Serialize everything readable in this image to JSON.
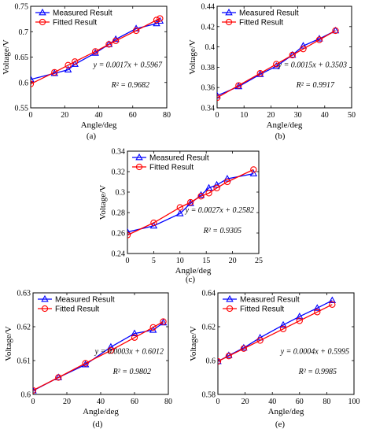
{
  "chart_data": [
    {
      "type": "line",
      "panel_label": "(a)",
      "xlabel": "Angle/deg",
      "ylabel": "Voltage/V",
      "xlim": [
        0,
        80
      ],
      "ylim": [
        0.55,
        0.75
      ],
      "xticks": [
        "0",
        "20",
        "40",
        "60",
        "80"
      ],
      "yticks": [
        "0.55",
        "0.6",
        "0.65",
        "0.7",
        "0.75"
      ],
      "legend": [
        "Measured Result",
        "Fitted Result"
      ],
      "equation": "y = 0.0017x + 0.5967",
      "r2": "R² = 0.9682",
      "series": [
        {
          "name": "Measured Result",
          "color": "#0000ff",
          "marker": "triangle",
          "x": [
            0,
            14,
            22,
            26,
            38,
            46,
            50,
            62,
            74,
            76
          ],
          "y": [
            0.606,
            0.618,
            0.625,
            0.636,
            0.658,
            0.675,
            0.685,
            0.706,
            0.716,
            0.721
          ]
        },
        {
          "name": "Fitted Result",
          "color": "#ff0000",
          "marker": "circle",
          "x": [
            0,
            14,
            22,
            26,
            38,
            46,
            50,
            62,
            74,
            76
          ],
          "y": [
            0.597,
            0.62,
            0.634,
            0.641,
            0.661,
            0.675,
            0.682,
            0.702,
            0.723,
            0.726
          ]
        }
      ]
    },
    {
      "type": "line",
      "panel_label": "(b)",
      "xlabel": "Angle/deg",
      "ylabel": "Voltage/V",
      "xlim": [
        0,
        50
      ],
      "ylim": [
        0.34,
        0.44
      ],
      "xticks": [
        "0",
        "10",
        "20",
        "30",
        "40",
        "50"
      ],
      "yticks": [
        "0.34",
        "0.36",
        "0.38",
        "0.4",
        "0.42",
        "0.44"
      ],
      "legend": [
        "Measured Result",
        "Fitted Result"
      ],
      "equation": "y = 0.0015x + 0.3503",
      "r2": "R² = 0.9917",
      "series": [
        {
          "name": "Measured Result",
          "color": "#0000ff",
          "marker": "triangle",
          "x": [
            0,
            8,
            16,
            22,
            28,
            32,
            38,
            44
          ],
          "y": [
            0.352,
            0.361,
            0.373,
            0.381,
            0.392,
            0.401,
            0.408,
            0.416
          ]
        },
        {
          "name": "Fitted Result",
          "color": "#ff0000",
          "marker": "circle",
          "x": [
            0,
            8,
            16,
            22,
            28,
            32,
            38,
            44
          ],
          "y": [
            0.35,
            0.362,
            0.374,
            0.383,
            0.392,
            0.398,
            0.407,
            0.416
          ]
        }
      ]
    },
    {
      "type": "line",
      "panel_label": "(c)",
      "xlabel": "Angle/deg",
      "ylabel": "Voltage/V",
      "xlim": [
        0,
        25
      ],
      "ylim": [
        0.24,
        0.34
      ],
      "xticks": [
        "0",
        "5",
        "10",
        "15",
        "20",
        "25"
      ],
      "yticks": [
        "0.24",
        "0.26",
        "0.28",
        "0.3",
        "0.32",
        "0.34"
      ],
      "legend": [
        "Measured Result",
        "Fitted Result"
      ],
      "equation": "y = 0.0027x + 0.2582",
      "r2": "R² = 0.9305",
      "series": [
        {
          "name": "Measured Result",
          "color": "#0000ff",
          "marker": "triangle",
          "x": [
            0,
            5,
            10,
            12,
            14,
            15.5,
            17,
            19,
            24
          ],
          "y": [
            0.261,
            0.267,
            0.279,
            0.289,
            0.297,
            0.304,
            0.307,
            0.313,
            0.318
          ]
        },
        {
          "name": "Fitted Result",
          "color": "#ff0000",
          "marker": "circle",
          "x": [
            0,
            5,
            10,
            12,
            14,
            15.5,
            17,
            19,
            24
          ],
          "y": [
            0.258,
            0.27,
            0.285,
            0.29,
            0.296,
            0.299,
            0.304,
            0.31,
            0.322
          ]
        }
      ]
    },
    {
      "type": "line",
      "panel_label": "(d)",
      "xlabel": "Angle/deg",
      "ylabel": "Voltage/V",
      "xlim": [
        0,
        80
      ],
      "ylim": [
        0.6,
        0.63
      ],
      "xticks": [
        "0",
        "20",
        "40",
        "60",
        "80"
      ],
      "yticks": [
        "0.6",
        "0.61",
        "0.62",
        "0.63"
      ],
      "legend": [
        "Measured Result",
        "Fitted Result"
      ],
      "equation": "y = 0.0003x + 0.6012",
      "r2": "R² = 0.9802",
      "series": [
        {
          "name": "Measured Result",
          "color": "#0000ff",
          "marker": "triangle",
          "x": [
            0,
            15,
            31,
            46,
            60,
            71,
            77
          ],
          "y": [
            0.6011,
            0.605,
            0.6088,
            0.614,
            0.618,
            0.619,
            0.6212
          ]
        },
        {
          "name": "Fitted Result",
          "color": "#ff0000",
          "marker": "circle",
          "x": [
            0,
            15,
            31,
            46,
            60,
            71,
            77
          ],
          "y": [
            0.6012,
            0.605,
            0.6092,
            0.613,
            0.6168,
            0.6198,
            0.6215
          ]
        }
      ]
    },
    {
      "type": "line",
      "panel_label": "(e)",
      "xlabel": "Angle/deg",
      "ylabel": "Voltage/V",
      "xlim": [
        0,
        100
      ],
      "ylim": [
        0.58,
        0.64
      ],
      "xticks": [
        "0",
        "20",
        "40",
        "60",
        "80",
        "100"
      ],
      "yticks": [
        "0.58",
        "0.6",
        "0.62",
        "0.64"
      ],
      "legend": [
        "Measured Result",
        "Fitted Result"
      ],
      "equation": "y = 0.0004x + 0.5995",
      "r2": "R² = 0.9985",
      "series": [
        {
          "name": "Measured Result",
          "color": "#0000ff",
          "marker": "triangle",
          "x": [
            0,
            8,
            19,
            31,
            48,
            60,
            73,
            84
          ],
          "y": [
            0.5995,
            0.603,
            0.6075,
            0.6135,
            0.621,
            0.626,
            0.631,
            0.6355
          ]
        },
        {
          "name": "Fitted Result",
          "color": "#ff0000",
          "marker": "circle",
          "x": [
            0,
            8,
            19,
            31,
            48,
            60,
            73,
            84
          ],
          "y": [
            0.5995,
            0.6027,
            0.6071,
            0.6119,
            0.6187,
            0.6235,
            0.6287,
            0.6331
          ]
        }
      ]
    }
  ]
}
